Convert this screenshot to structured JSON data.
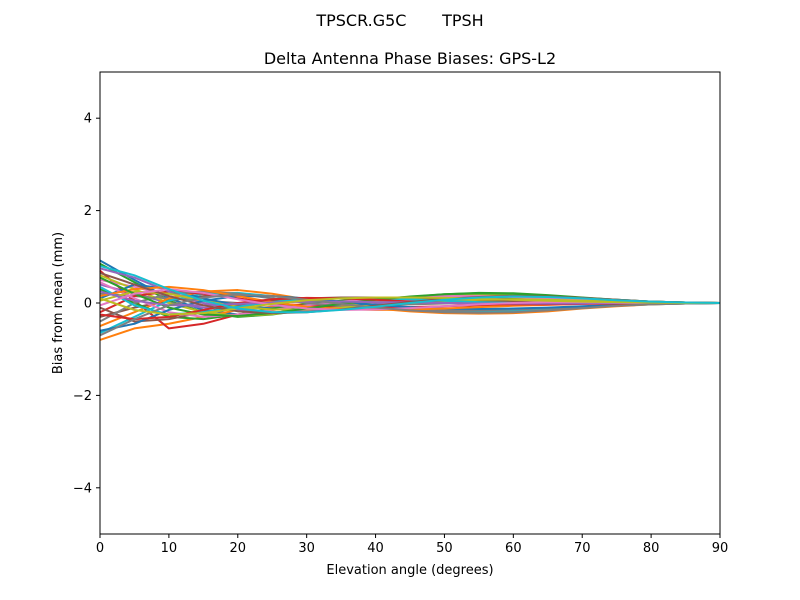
{
  "suptitle": "TPSCR.G5C       TPSH",
  "chart_data": {
    "type": "line",
    "title": "Delta Antenna Phase Biases: GPS-L2",
    "xlabel": "Elevation angle (degrees)",
    "ylabel": "Bias from mean (mm)",
    "xlim": [
      0,
      90
    ],
    "ylim": [
      -5,
      5
    ],
    "xticks": [
      0,
      10,
      20,
      30,
      40,
      50,
      60,
      70,
      80,
      90
    ],
    "yticks": [
      -4,
      -2,
      0,
      2,
      4
    ],
    "ytick_labels": [
      "−4",
      "−2",
      "0",
      "2",
      "4"
    ],
    "grid": false,
    "legend": "none",
    "x": [
      0,
      5,
      10,
      15,
      20,
      25,
      30,
      35,
      40,
      45,
      50,
      55,
      60,
      65,
      70,
      75,
      80,
      85,
      90
    ],
    "colors": [
      "#1f77b4",
      "#ff7f0e",
      "#2ca02c",
      "#d62728",
      "#9467bd",
      "#8c564b",
      "#e377c2",
      "#7f7f7f",
      "#bcbd22",
      "#17becf"
    ],
    "series": [
      {
        "values": [
          0.92,
          0.5,
          0.1,
          -0.15,
          -0.25,
          -0.22,
          -0.12,
          -0.02,
          0.07,
          0.13,
          0.17,
          0.19,
          0.18,
          0.15,
          0.11,
          0.07,
          0.03,
          0.01,
          0.0
        ]
      },
      {
        "values": [
          -0.8,
          -0.55,
          -0.45,
          -0.3,
          -0.15,
          -0.08,
          -0.02,
          0.03,
          0.07,
          0.11,
          0.14,
          0.16,
          0.15,
          0.13,
          0.1,
          0.06,
          0.03,
          0.01,
          0.0
        ]
      },
      {
        "values": [
          0.85,
          0.45,
          0.05,
          -0.2,
          -0.3,
          -0.25,
          -0.15,
          -0.05,
          0.05,
          0.13,
          0.19,
          0.22,
          0.21,
          0.17,
          0.12,
          0.07,
          0.03,
          0.01,
          0.0
        ]
      },
      {
        "values": [
          0.7,
          0.05,
          -0.55,
          -0.45,
          -0.25,
          -0.15,
          -0.08,
          -0.02,
          0.03,
          0.07,
          0.09,
          0.1,
          0.09,
          0.07,
          0.05,
          0.03,
          0.01,
          0.0,
          0.0
        ]
      },
      {
        "values": [
          0.4,
          0.2,
          0.0,
          -0.1,
          -0.12,
          -0.1,
          -0.06,
          -0.02,
          0.02,
          0.05,
          0.07,
          0.08,
          0.07,
          0.06,
          0.04,
          0.02,
          0.01,
          0.0,
          0.0
        ]
      },
      {
        "values": [
          -0.3,
          -0.1,
          0.05,
          0.15,
          0.2,
          0.15,
          0.08,
          0.0,
          -0.06,
          -0.1,
          -0.13,
          -0.15,
          -0.15,
          -0.12,
          -0.08,
          -0.05,
          -0.02,
          -0.01,
          0.0
        ]
      },
      {
        "values": [
          0.5,
          0.35,
          0.15,
          0.0,
          -0.1,
          -0.12,
          -0.1,
          -0.05,
          0.0,
          0.05,
          0.08,
          0.1,
          0.1,
          0.08,
          0.06,
          0.03,
          0.01,
          0.0,
          0.0
        ]
      },
      {
        "values": [
          0.2,
          0.15,
          0.1,
          0.05,
          0.0,
          -0.04,
          -0.06,
          -0.06,
          -0.05,
          -0.03,
          -0.01,
          0.01,
          0.02,
          0.02,
          0.02,
          0.01,
          0.0,
          0.0,
          0.0
        ]
      },
      {
        "values": [
          0.6,
          0.3,
          0.0,
          -0.2,
          -0.28,
          -0.24,
          -0.15,
          -0.06,
          0.03,
          0.1,
          0.15,
          0.17,
          0.16,
          0.13,
          0.09,
          0.05,
          0.02,
          0.01,
          0.0
        ]
      },
      {
        "values": [
          -0.65,
          -0.3,
          0.05,
          0.2,
          0.22,
          0.15,
          0.05,
          -0.04,
          -0.11,
          -0.15,
          -0.18,
          -0.19,
          -0.18,
          -0.15,
          -0.1,
          -0.06,
          -0.03,
          -0.01,
          0.0
        ]
      },
      {
        "values": [
          0.1,
          0.4,
          0.3,
          0.1,
          -0.05,
          -0.12,
          -0.12,
          -0.08,
          -0.03,
          0.02,
          0.06,
          0.08,
          0.08,
          0.07,
          0.05,
          0.03,
          0.01,
          0.0,
          0.0
        ]
      },
      {
        "values": [
          -0.5,
          -0.2,
          0.1,
          0.25,
          0.28,
          0.2,
          0.08,
          -0.03,
          -0.12,
          -0.18,
          -0.22,
          -0.23,
          -0.22,
          -0.18,
          -0.12,
          -0.07,
          -0.03,
          -0.01,
          0.0
        ]
      },
      {
        "values": [
          0.3,
          0.0,
          -0.3,
          -0.35,
          -0.25,
          -0.12,
          -0.02,
          0.05,
          0.1,
          0.13,
          0.14,
          0.14,
          0.12,
          0.1,
          0.07,
          0.04,
          0.02,
          0.01,
          0.0
        ]
      },
      {
        "values": [
          -0.2,
          0.15,
          0.25,
          0.2,
          0.1,
          0.0,
          -0.06,
          -0.09,
          -0.1,
          -0.09,
          -0.07,
          -0.05,
          -0.03,
          -0.02,
          -0.01,
          -0.01,
          0.0,
          0.0,
          0.0
        ]
      },
      {
        "values": [
          0.75,
          0.55,
          0.25,
          0.0,
          -0.15,
          -0.2,
          -0.18,
          -0.12,
          -0.04,
          0.04,
          0.1,
          0.14,
          0.15,
          0.13,
          0.1,
          0.06,
          0.03,
          0.01,
          0.0
        ]
      },
      {
        "values": [
          -0.1,
          -0.4,
          -0.35,
          -0.2,
          -0.05,
          0.05,
          0.1,
          0.12,
          0.12,
          0.1,
          0.08,
          0.05,
          0.03,
          0.01,
          0.0,
          0.0,
          0.0,
          0.0,
          0.0
        ]
      },
      {
        "values": [
          0.45,
          0.1,
          -0.2,
          -0.3,
          -0.25,
          -0.15,
          -0.05,
          0.03,
          0.09,
          0.13,
          0.15,
          0.15,
          0.13,
          0.1,
          0.07,
          0.04,
          0.02,
          0.01,
          0.0
        ]
      },
      {
        "values": [
          -0.4,
          0.0,
          0.2,
          0.25,
          0.2,
          0.1,
          0.0,
          -0.07,
          -0.12,
          -0.15,
          -0.16,
          -0.16,
          -0.14,
          -0.11,
          -0.08,
          -0.05,
          -0.02,
          -0.01,
          0.0
        ]
      },
      {
        "values": [
          0.05,
          0.25,
          0.2,
          0.05,
          -0.08,
          -0.14,
          -0.14,
          -0.1,
          -0.05,
          0.0,
          0.04,
          0.07,
          0.08,
          0.07,
          0.05,
          0.03,
          0.01,
          0.0,
          0.0
        ]
      },
      {
        "values": [
          0.35,
          -0.05,
          -0.25,
          -0.2,
          -0.08,
          0.02,
          0.08,
          0.1,
          0.1,
          0.08,
          0.05,
          0.02,
          0.0,
          -0.01,
          -0.01,
          -0.01,
          0.0,
          0.0,
          0.0
        ]
      },
      {
        "values": [
          -0.6,
          -0.45,
          -0.15,
          0.05,
          0.15,
          0.15,
          0.1,
          0.03,
          -0.04,
          -0.09,
          -0.12,
          -0.13,
          -0.12,
          -0.1,
          -0.07,
          -0.04,
          -0.02,
          -0.01,
          0.0
        ]
      },
      {
        "values": [
          0.15,
          0.3,
          0.35,
          0.28,
          0.15,
          0.02,
          -0.08,
          -0.13,
          -0.15,
          -0.14,
          -0.12,
          -0.09,
          -0.06,
          -0.04,
          -0.02,
          -0.01,
          0.0,
          0.0,
          0.0
        ]
      },
      {
        "values": [
          0.55,
          0.2,
          -0.1,
          -0.25,
          -0.28,
          -0.22,
          -0.12,
          -0.02,
          0.07,
          0.14,
          0.19,
          0.21,
          0.2,
          0.16,
          0.11,
          0.06,
          0.03,
          0.01,
          0.0
        ]
      },
      {
        "values": [
          -0.25,
          -0.35,
          -0.3,
          -0.15,
          0.0,
          0.08,
          0.11,
          0.1,
          0.07,
          0.03,
          0.0,
          -0.02,
          -0.03,
          -0.03,
          -0.02,
          -0.01,
          0.0,
          0.0,
          0.0
        ]
      },
      {
        "values": [
          0.25,
          0.05,
          -0.05,
          -0.05,
          -0.02,
          0.01,
          0.03,
          0.03,
          0.02,
          0.01,
          0.0,
          -0.01,
          -0.01,
          -0.01,
          -0.01,
          0.0,
          0.0,
          0.0,
          0.0
        ]
      },
      {
        "values": [
          0.65,
          0.4,
          0.15,
          -0.05,
          -0.18,
          -0.22,
          -0.2,
          -0.14,
          -0.06,
          0.02,
          0.09,
          0.13,
          0.15,
          0.14,
          0.11,
          0.07,
          0.03,
          0.01,
          0.0
        ]
      },
      {
        "values": [
          -0.05,
          0.2,
          0.3,
          0.22,
          0.08,
          -0.04,
          -0.12,
          -0.15,
          -0.14,
          -0.11,
          -0.07,
          -0.03,
          0.0,
          0.02,
          0.02,
          0.01,
          0.0,
          0.0,
          0.0
        ]
      },
      {
        "values": [
          -0.7,
          -0.35,
          -0.05,
          0.12,
          0.18,
          0.15,
          0.07,
          -0.02,
          -0.1,
          -0.16,
          -0.2,
          -0.21,
          -0.2,
          -0.16,
          -0.11,
          -0.06,
          -0.03,
          -0.01,
          0.0
        ]
      },
      {
        "values": [
          0.1,
          -0.15,
          -0.25,
          -0.22,
          -0.12,
          -0.02,
          0.06,
          0.1,
          0.12,
          0.12,
          0.11,
          0.09,
          0.07,
          0.05,
          0.03,
          0.02,
          0.01,
          0.0,
          0.0
        ]
      },
      {
        "values": [
          0.8,
          0.6,
          0.3,
          0.05,
          -0.12,
          -0.2,
          -0.2,
          -0.15,
          -0.08,
          0.0,
          0.07,
          0.12,
          0.14,
          0.13,
          0.1,
          0.06,
          0.03,
          0.01,
          0.0
        ]
      }
    ]
  }
}
